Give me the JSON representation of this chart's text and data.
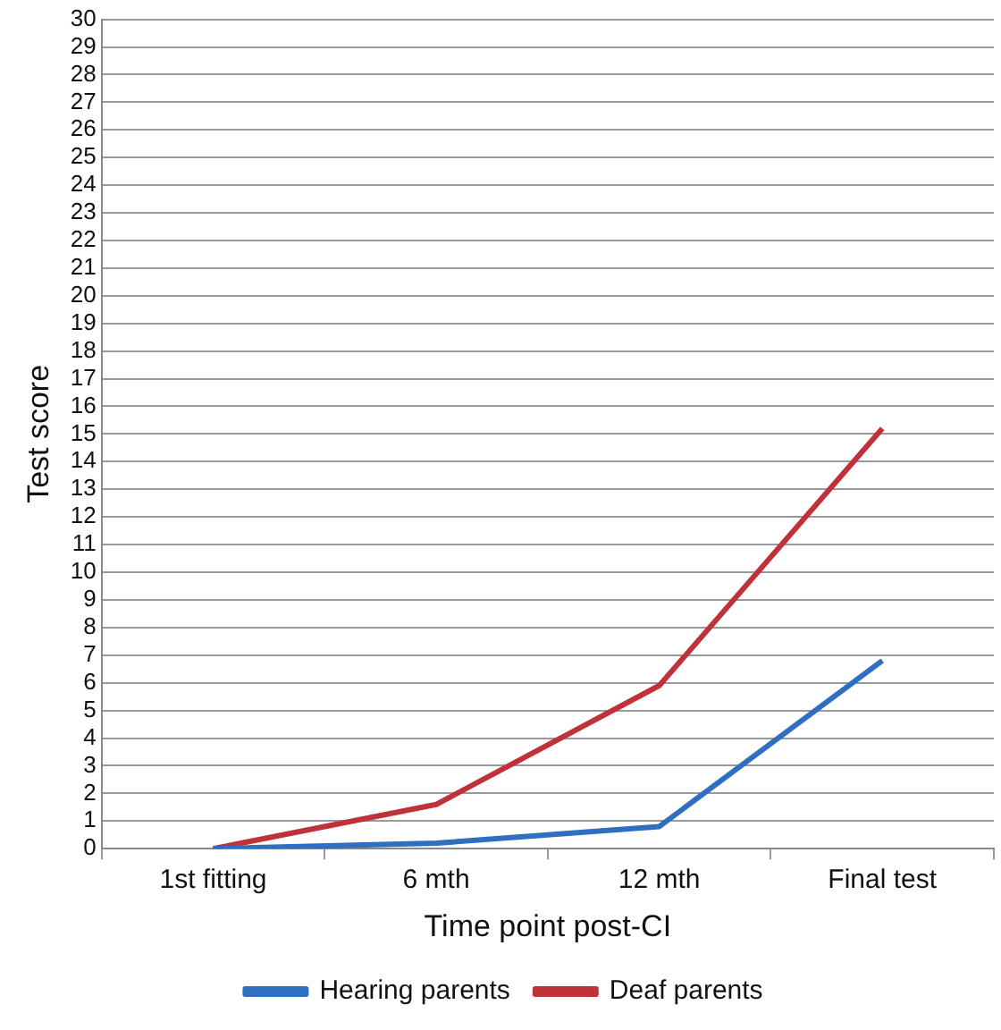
{
  "chart_data": {
    "type": "line",
    "xlabel": "Time point post-CI",
    "ylabel": "Test score",
    "categories": [
      "1st fitting",
      "6 mth",
      "12 mth",
      "Final test"
    ],
    "series": [
      {
        "name": "Hearing parents",
        "color": "#2f6fbf",
        "values": [
          0,
          0.2,
          0.8,
          6.8
        ]
      },
      {
        "name": "Deaf parents",
        "color": "#c0323a",
        "values": [
          0,
          1.6,
          5.9,
          15.2
        ]
      }
    ],
    "ylim": [
      0,
      30
    ],
    "yticks": [
      0,
      1,
      2,
      3,
      4,
      5,
      6,
      7,
      8,
      9,
      10,
      11,
      12,
      13,
      14,
      15,
      16,
      17,
      18,
      19,
      20,
      21,
      22,
      23,
      24,
      25,
      26,
      27,
      28,
      29,
      30
    ],
    "grid": "y",
    "legend": "bottom",
    "marker": "none",
    "line_style": "solid"
  }
}
